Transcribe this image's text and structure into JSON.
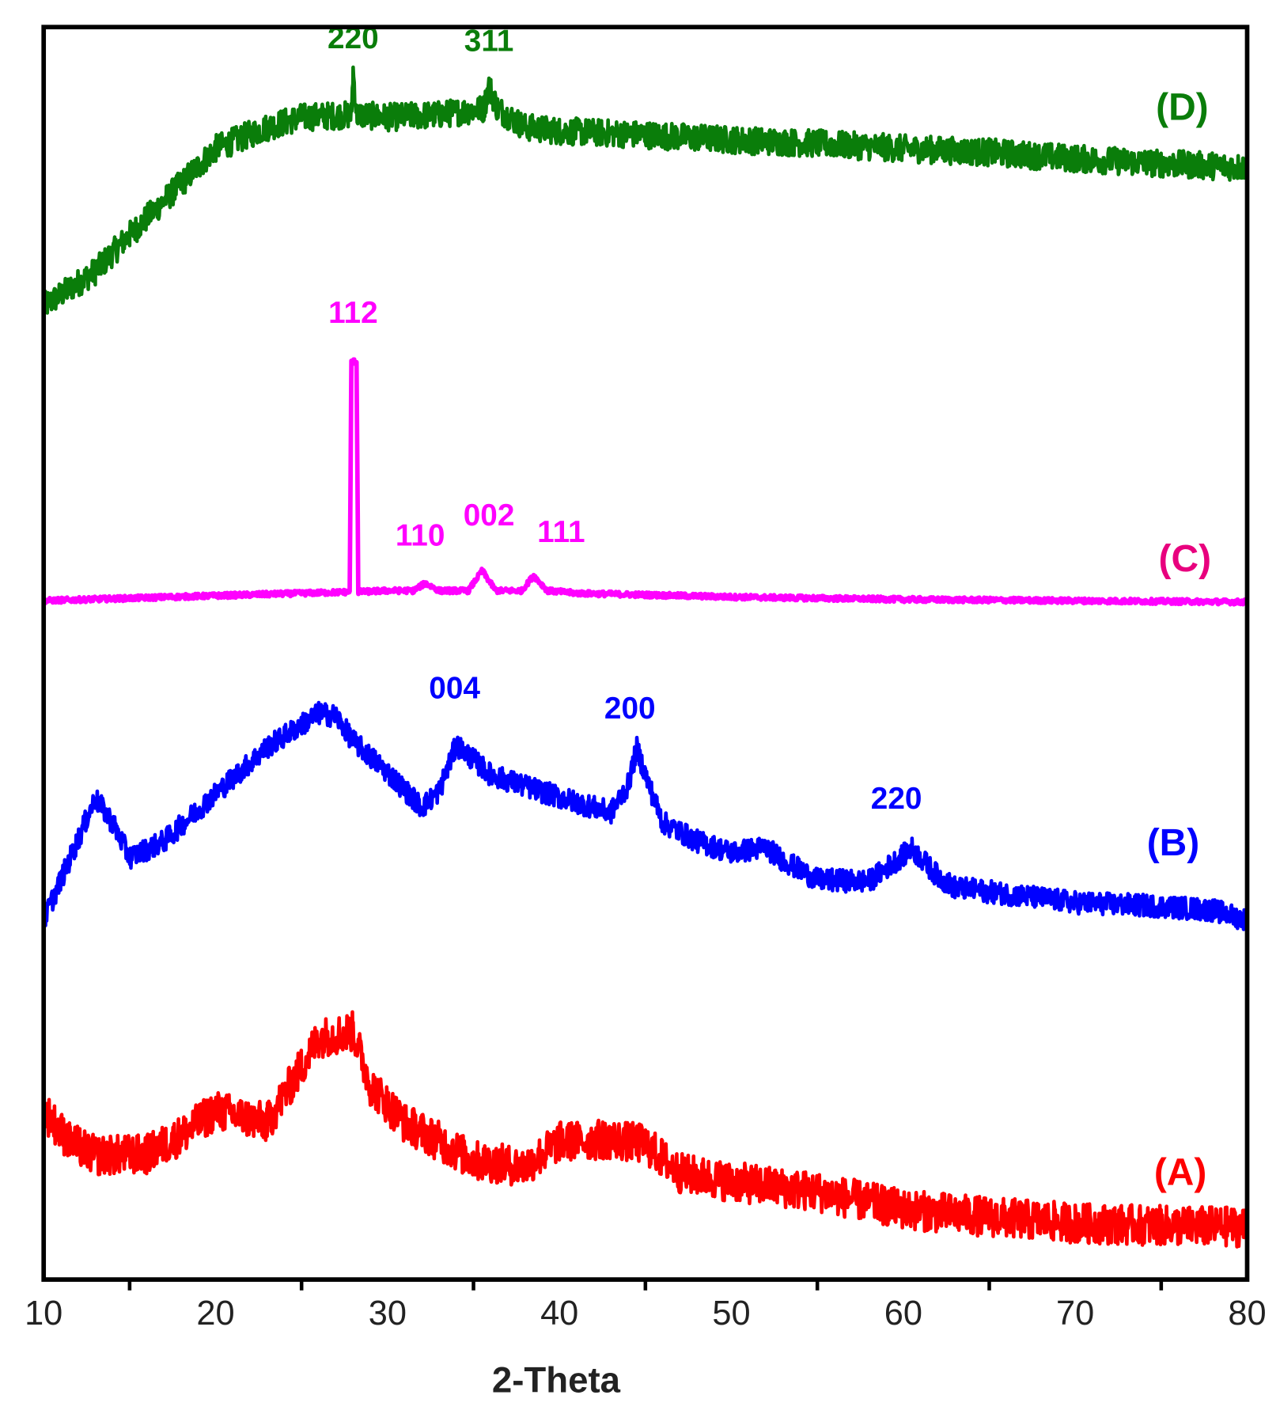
{
  "chart_data": {
    "type": "line",
    "title": "",
    "xlabel": "2-Theta",
    "ylabel": "",
    "xlim": [
      10,
      80
    ],
    "ylim": [
      0,
      100
    ],
    "y_units": "arbitrary intensity (stacked, no y ticks)",
    "x_ticks": [
      10,
      20,
      30,
      40,
      50,
      60,
      70,
      80
    ],
    "x_minor_ticks": [
      15,
      25,
      35,
      45,
      55,
      65,
      75
    ],
    "grid": false,
    "series": [
      {
        "name": "(D)",
        "color": "#0a7d0a",
        "noise": 1.1,
        "points": [
          [
            10,
            77.7
          ],
          [
            13,
            80.5
          ],
          [
            15,
            83.4
          ],
          [
            18,
            87.5
          ],
          [
            20,
            90.3
          ],
          [
            23,
            92
          ],
          [
            25,
            92.8
          ],
          [
            27.9,
            93
          ],
          [
            28.0,
            96.5
          ],
          [
            28.2,
            93
          ],
          [
            30,
            92.8
          ],
          [
            33,
            93
          ],
          [
            35.6,
            93.5
          ],
          [
            35.9,
            95.3
          ],
          [
            36.4,
            93.5
          ],
          [
            38,
            92
          ],
          [
            40,
            91.7
          ],
          [
            45,
            91.4
          ],
          [
            50,
            91
          ],
          [
            55,
            90.7
          ],
          [
            60,
            90.3
          ],
          [
            65,
            90
          ],
          [
            70,
            89.5
          ],
          [
            75,
            89.1
          ],
          [
            80,
            88.8
          ]
        ]
      },
      {
        "name": "(C)",
        "color": "#ff00ff",
        "noise": 0.2,
        "points": [
          [
            10,
            54.2
          ],
          [
            20,
            54.6
          ],
          [
            27.8,
            54.9
          ],
          [
            27.9,
            73.3
          ],
          [
            28.2,
            73.3
          ],
          [
            28.3,
            54.9
          ],
          [
            30,
            55
          ],
          [
            31.5,
            55
          ],
          [
            32.2,
            55.6
          ],
          [
            33,
            55
          ],
          [
            34.7,
            55
          ],
          [
            35.5,
            56.6
          ],
          [
            36.3,
            55
          ],
          [
            37.8,
            55
          ],
          [
            38.5,
            56.2
          ],
          [
            39.3,
            55
          ],
          [
            41,
            54.8
          ],
          [
            50,
            54.5
          ],
          [
            60,
            54.3
          ],
          [
            70,
            54.2
          ],
          [
            80,
            54.1
          ]
        ]
      },
      {
        "name": "(B)",
        "color": "#0000ff",
        "noise": 0.9,
        "points": [
          [
            10,
            28.7
          ],
          [
            11.5,
            33.5
          ],
          [
            13,
            38.4
          ],
          [
            14,
            36.5
          ],
          [
            15,
            33.7
          ],
          [
            17,
            35
          ],
          [
            20,
            38.8
          ],
          [
            23,
            42.5
          ],
          [
            26,
            45.2
          ],
          [
            27,
            45
          ],
          [
            28,
            43
          ],
          [
            30,
            40.5
          ],
          [
            32,
            37.7
          ],
          [
            33,
            39
          ],
          [
            34,
            42.7
          ],
          [
            35,
            41.5
          ],
          [
            36,
            40.3
          ],
          [
            40,
            38.5
          ],
          [
            43,
            37.3
          ],
          [
            44,
            39.5
          ],
          [
            44.5,
            42.4
          ],
          [
            45.2,
            39.5
          ],
          [
            46,
            36.5
          ],
          [
            48,
            35
          ],
          [
            50,
            34.1
          ],
          [
            52,
            34.5
          ],
          [
            53,
            33.5
          ],
          [
            55,
            31.9
          ],
          [
            58,
            31.8
          ],
          [
            60.5,
            34.4
          ],
          [
            62,
            32.2
          ],
          [
            63,
            31.3
          ],
          [
            66,
            30.8
          ],
          [
            70,
            30.1
          ],
          [
            75,
            29.8
          ],
          [
            78,
            29.5
          ],
          [
            80,
            28.7
          ]
        ]
      },
      {
        "name": "(A)",
        "color": "#ff0000",
        "noise": 1.6,
        "points": [
          [
            10,
            13.5
          ],
          [
            11.5,
            11
          ],
          [
            13,
            9.9
          ],
          [
            16,
            10
          ],
          [
            18,
            11.5
          ],
          [
            20,
            13.5
          ],
          [
            23,
            12.5
          ],
          [
            25,
            17
          ],
          [
            26,
            19.3
          ],
          [
            28,
            19.8
          ],
          [
            29,
            15.5
          ],
          [
            31,
            12.5
          ],
          [
            32,
            11.8
          ],
          [
            35,
            9.5
          ],
          [
            38,
            9
          ],
          [
            40,
            11
          ],
          [
            43,
            11.2
          ],
          [
            45,
            10.8
          ],
          [
            47,
            8.5
          ],
          [
            50,
            7.8
          ],
          [
            55,
            7
          ],
          [
            60,
            5.6
          ],
          [
            65,
            5
          ],
          [
            70,
            4.5
          ],
          [
            75,
            4.3
          ],
          [
            80,
            4.2
          ]
        ]
      }
    ],
    "annotations": [
      {
        "text": "220",
        "x": 28.0,
        "y": 98.3,
        "color": "#0a7d0a"
      },
      {
        "text": "311",
        "x": 35.9,
        "y": 98.1,
        "color": "#0a7d0a"
      },
      {
        "text": "112",
        "x": 28.0,
        "y": 76.4,
        "color": "#ff00ff"
      },
      {
        "text": "110",
        "x": 31.9,
        "y": 58.6,
        "color": "#ff00ff"
      },
      {
        "text": "002",
        "x": 35.9,
        "y": 60.2,
        "color": "#ff00ff"
      },
      {
        "text": "111",
        "x": 40.1,
        "y": 58.9,
        "color": "#ff00ff"
      },
      {
        "text": "004",
        "x": 33.9,
        "y": 46.4,
        "color": "#0000ff"
      },
      {
        "text": "200",
        "x": 44.1,
        "y": 44.8,
        "color": "#0000ff"
      },
      {
        "text": "220",
        "x": 59.6,
        "y": 37.6,
        "color": "#0000ff"
      }
    ],
    "legend_placement": "right, beside each curve"
  }
}
